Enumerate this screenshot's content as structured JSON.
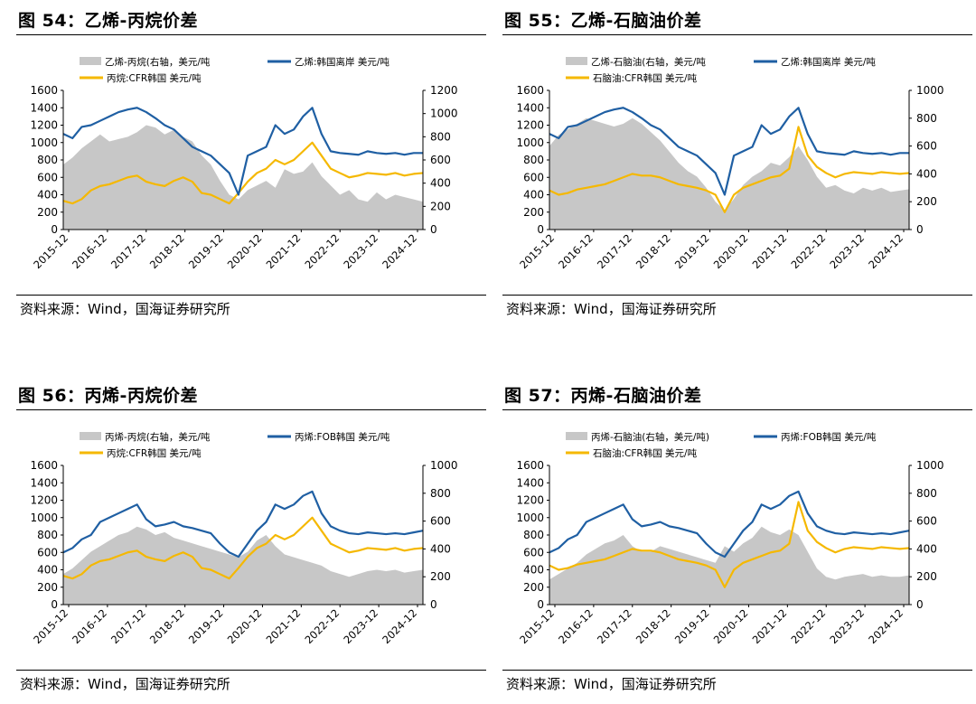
{
  "source_text": "资料来源：Wind，国海证券研究所",
  "colors": {
    "area": "#c7c7c7",
    "line_blue": "#1f5fa3",
    "line_yellow": "#f5b800"
  },
  "chart_data": [
    {
      "title": "图 54：乙烯-丙烷价差",
      "type": "line",
      "legend_placement": "top",
      "ylim_left": [
        0,
        1600
      ],
      "ylim_right": [
        0,
        1200
      ],
      "left_ticks": [
        "1600",
        "1400",
        "1200",
        "1000",
        "800",
        "600",
        "400",
        "200",
        "0"
      ],
      "right_ticks": [
        "1200",
        "1000",
        "800",
        "600",
        "400",
        "200",
        "0"
      ],
      "x_ticks": [
        "2015-12",
        "2016-12",
        "2017-12",
        "2018-12",
        "2019-12",
        "2020-12",
        "2021-12",
        "2022-12",
        "2023-12",
        "2024-12"
      ],
      "series": [
        {
          "name": "乙烯-丙烷(右轴，美元/吨",
          "kind": "area",
          "axis": "right",
          "values": [
            560,
            620,
            700,
            760,
            820,
            760,
            780,
            800,
            840,
            900,
            880,
            820,
            860,
            800,
            760,
            640,
            560,
            420,
            300,
            260,
            340,
            380,
            420,
            360,
            520,
            480,
            500,
            580,
            460,
            380,
            300,
            340,
            260,
            240,
            320,
            260,
            300,
            280,
            260,
            240
          ]
        },
        {
          "name": "乙烯:韩国离岸 美元/吨",
          "kind": "line",
          "axis": "left",
          "values": [
            1100,
            1050,
            1180,
            1200,
            1250,
            1300,
            1350,
            1380,
            1400,
            1350,
            1280,
            1200,
            1150,
            1050,
            950,
            900,
            850,
            750,
            650,
            400,
            850,
            900,
            950,
            1200,
            1100,
            1150,
            1300,
            1400,
            1100,
            900,
            880,
            870,
            860,
            900,
            880,
            870,
            880,
            860,
            880,
            880
          ]
        },
        {
          "name": "丙烷:CFR韩国 美元/吨",
          "kind": "line",
          "axis": "left",
          "values": [
            330,
            300,
            350,
            450,
            500,
            520,
            560,
            600,
            620,
            550,
            520,
            500,
            560,
            600,
            550,
            420,
            400,
            350,
            300,
            420,
            550,
            650,
            700,
            800,
            750,
            800,
            900,
            1000,
            850,
            700,
            650,
            600,
            620,
            650,
            640,
            630,
            650,
            620,
            640,
            650
          ]
        }
      ]
    },
    {
      "title": "图 55：乙烯-石脑油价差",
      "type": "line",
      "legend_placement": "top",
      "ylim_left": [
        0,
        1600
      ],
      "ylim_right": [
        0,
        1000
      ],
      "left_ticks": [
        "1600",
        "1400",
        "1200",
        "1000",
        "800",
        "600",
        "400",
        "200",
        "0"
      ],
      "right_ticks": [
        "1000",
        "800",
        "600",
        "400",
        "200",
        "0"
      ],
      "x_ticks": [
        "2015-12",
        "2016-12",
        "2017-12",
        "2018-12",
        "2019-12",
        "2020-12",
        "2021-12",
        "2022-12",
        "2023-12",
        "2024-12"
      ],
      "series": [
        {
          "name": "乙烯-石脑油(右轴，美元/吨",
          "kind": "area",
          "axis": "right",
          "values": [
            600,
            680,
            720,
            760,
            800,
            780,
            760,
            740,
            760,
            800,
            760,
            700,
            640,
            560,
            480,
            420,
            380,
            300,
            200,
            140,
            220,
            320,
            380,
            420,
            480,
            460,
            520,
            600,
            500,
            380,
            300,
            320,
            280,
            260,
            300,
            280,
            300,
            270,
            280,
            290
          ]
        },
        {
          "name": "乙烯:韩国离岸 美元/吨",
          "kind": "line",
          "axis": "left",
          "values": [
            1100,
            1050,
            1180,
            1200,
            1250,
            1300,
            1350,
            1380,
            1400,
            1350,
            1280,
            1200,
            1150,
            1050,
            950,
            900,
            850,
            750,
            650,
            400,
            850,
            900,
            950,
            1200,
            1100,
            1150,
            1300,
            1400,
            1100,
            900,
            880,
            870,
            860,
            900,
            880,
            870,
            880,
            860,
            880,
            880
          ]
        },
        {
          "name": "石脑油:CFR韩国 美元/吨",
          "kind": "line",
          "axis": "left",
          "values": [
            450,
            400,
            420,
            460,
            480,
            500,
            520,
            560,
            600,
            640,
            620,
            620,
            600,
            560,
            520,
            500,
            480,
            450,
            400,
            200,
            400,
            480,
            520,
            560,
            600,
            620,
            700,
            1180,
            850,
            720,
            650,
            600,
            640,
            660,
            650,
            640,
            660,
            650,
            640,
            650
          ]
        }
      ]
    },
    {
      "title": "图 56：丙烯-丙烷价差",
      "type": "line",
      "legend_placement": "top",
      "ylim_left": [
        0,
        1600
      ],
      "ylim_right": [
        0,
        1000
      ],
      "left_ticks": [
        "1600",
        "1400",
        "1200",
        "1000",
        "800",
        "600",
        "400",
        "200",
        "0"
      ],
      "right_ticks": [
        "1000",
        "800",
        "600",
        "400",
        "200",
        "0"
      ],
      "x_ticks": [
        "2015-12",
        "2016-12",
        "2017-12",
        "2018-12",
        "2019-12",
        "2020-12",
        "2021-12",
        "2022-12",
        "2023-12",
        "2024-12"
      ],
      "series": [
        {
          "name": "丙烯-丙烷(右轴，美元/吨",
          "kind": "area",
          "axis": "right",
          "values": [
            220,
            260,
            320,
            380,
            420,
            460,
            500,
            520,
            560,
            540,
            500,
            520,
            480,
            460,
            440,
            420,
            400,
            380,
            360,
            340,
            380,
            460,
            500,
            420,
            360,
            340,
            320,
            300,
            280,
            240,
            220,
            200,
            220,
            240,
            250,
            240,
            250,
            230,
            240,
            250
          ]
        },
        {
          "name": "丙烯:FOB韩国 美元/吨",
          "kind": "line",
          "axis": "left",
          "values": [
            600,
            650,
            750,
            800,
            950,
            1000,
            1050,
            1100,
            1150,
            980,
            900,
            920,
            950,
            900,
            880,
            850,
            820,
            700,
            600,
            550,
            700,
            850,
            950,
            1150,
            1100,
            1150,
            1250,
            1300,
            1050,
            900,
            850,
            820,
            810,
            830,
            820,
            810,
            820,
            810,
            830,
            850
          ]
        },
        {
          "name": "丙烷:CFR韩国 美元/吨",
          "kind": "line",
          "axis": "left",
          "values": [
            330,
            300,
            350,
            450,
            500,
            520,
            560,
            600,
            620,
            550,
            520,
            500,
            560,
            600,
            550,
            420,
            400,
            350,
            300,
            420,
            550,
            650,
            700,
            800,
            750,
            800,
            900,
            1000,
            850,
            700,
            650,
            600,
            620,
            650,
            640,
            630,
            650,
            620,
            640,
            650
          ]
        }
      ]
    },
    {
      "title": "图 57：丙烯-石脑油价差",
      "type": "line",
      "legend_placement": "top",
      "ylim_left": [
        0,
        1600
      ],
      "ylim_right": [
        0,
        1000
      ],
      "left_ticks": [
        "1600",
        "1400",
        "1200",
        "1000",
        "800",
        "600",
        "400",
        "200",
        "0"
      ],
      "right_ticks": [
        "1000",
        "800",
        "600",
        "400",
        "200",
        "0"
      ],
      "x_ticks": [
        "2015-12",
        "2016-12",
        "2017-12",
        "2018-12",
        "2019-12",
        "2020-12",
        "2021-12",
        "2022-12",
        "2023-12",
        "2024-12"
      ],
      "series": [
        {
          "name": "丙烯-石脑油(右轴，美元/吨)",
          "kind": "area",
          "axis": "right",
          "values": [
            180,
            220,
            260,
            300,
            360,
            400,
            440,
            460,
            500,
            420,
            380,
            380,
            420,
            400,
            380,
            360,
            340,
            320,
            300,
            420,
            380,
            440,
            480,
            560,
            520,
            500,
            540,
            500,
            380,
            260,
            200,
            180,
            200,
            210,
            220,
            200,
            210,
            200,
            200,
            210
          ]
        },
        {
          "name": "丙烯:FOB韩国 美元/吨",
          "kind": "line",
          "axis": "left",
          "values": [
            600,
            650,
            750,
            800,
            950,
            1000,
            1050,
            1100,
            1150,
            980,
            900,
            920,
            950,
            900,
            880,
            850,
            820,
            700,
            600,
            550,
            700,
            850,
            950,
            1150,
            1100,
            1150,
            1250,
            1300,
            1050,
            900,
            850,
            820,
            810,
            830,
            820,
            810,
            820,
            810,
            830,
            850
          ]
        },
        {
          "name": "石脑油:CFR韩国 美元/吨",
          "kind": "line",
          "axis": "left",
          "values": [
            450,
            400,
            420,
            460,
            480,
            500,
            520,
            560,
            600,
            640,
            620,
            620,
            600,
            560,
            520,
            500,
            480,
            450,
            400,
            200,
            400,
            480,
            520,
            560,
            600,
            620,
            700,
            1180,
            850,
            720,
            650,
            600,
            640,
            660,
            650,
            640,
            660,
            650,
            640,
            650
          ]
        }
      ]
    }
  ]
}
